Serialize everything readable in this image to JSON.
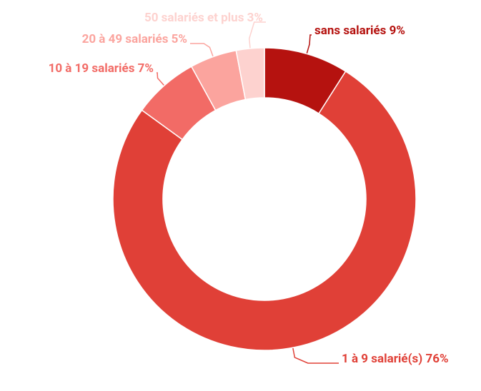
{
  "chart_data": {
    "type": "donut",
    "categories": [
      "sans salariés",
      "1 à 9 salarié(s)",
      "10 à 19 salariés",
      "20 à 49 salariés",
      "50 salariés et plus"
    ],
    "values": [
      9,
      76,
      7,
      5,
      3
    ],
    "value_labels": [
      "9%",
      "76%",
      "7%",
      "5%",
      "3%"
    ],
    "colors": [
      "#b5120f",
      "#e04037",
      "#f26b66",
      "#fba49e",
      "#fdd2cf"
    ]
  }
}
